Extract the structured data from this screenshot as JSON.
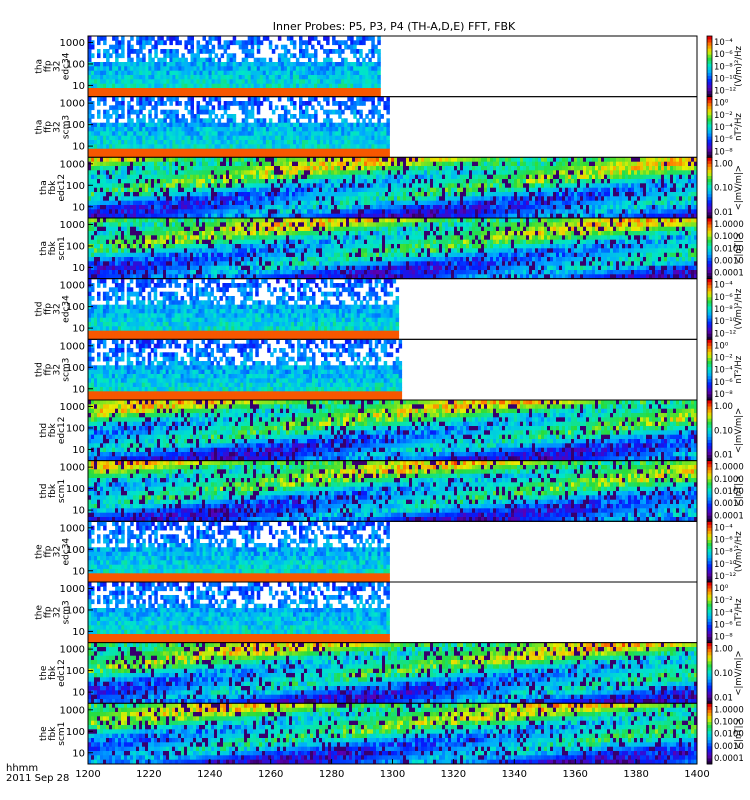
{
  "chart_data": {
    "type": "heatmap",
    "title": "Inner Probes: P5, P3, P4 (TH-A,D,E) FFT, FBK",
    "x": {
      "ticks": [
        1200,
        1220,
        1240,
        1260,
        1280,
        1300,
        1320,
        1340,
        1360,
        1380,
        1400
      ],
      "range": [
        1200,
        1400
      ]
    },
    "footer": {
      "time_label": "hhmm",
      "date_label": "2011 Sep 28"
    },
    "panels": [
      {
        "name": "tha ffp 32 edc34",
        "label_lines": [
          "tha",
          "ffp",
          "32",
          "edc34"
        ],
        "yticks": [
          "10",
          "100",
          "1000"
        ],
        "ylim": [
          3,
          2000
        ],
        "data_end": 1296,
        "colorbar": {
          "ticks": [
            "10⁻⁴",
            "10⁻⁶",
            "10⁻⁸",
            "10⁻¹⁰",
            "10⁻¹²"
          ],
          "unit": "(V/m)²/Hz"
        }
      },
      {
        "name": "tha ffp 32 scm3",
        "label_lines": [
          "tha",
          "ffp",
          "32",
          "scm3"
        ],
        "yticks": [
          "10",
          "100",
          "1000"
        ],
        "ylim": [
          3,
          2000
        ],
        "data_end": 1299,
        "colorbar": {
          "ticks": [
            "10⁰",
            "10⁻²",
            "10⁻⁴",
            "10⁻⁶",
            "10⁻⁸"
          ],
          "unit": "nT²/Hz"
        }
      },
      {
        "name": "tha fbk edc12",
        "label_lines": [
          "tha",
          "fbk",
          "edc12"
        ],
        "yticks": [
          "10",
          "100",
          "1000"
        ],
        "ylim": [
          3,
          2000
        ],
        "data_end": 1400,
        "colorbar": {
          "ticks": [
            "1.00",
            "0.10",
            "0.01"
          ],
          "unit": "<|mV/m|>"
        }
      },
      {
        "name": "tha fbk scm1",
        "label_lines": [
          "tha",
          "fbk",
          "scm1"
        ],
        "yticks": [
          "10",
          "100",
          "1000"
        ],
        "ylim": [
          3,
          2000
        ],
        "data_end": 1400,
        "colorbar": {
          "ticks": [
            "1.0000",
            "0.1000",
            "0.0100",
            "0.0010",
            "0.0001"
          ],
          "unit": "<|nT|>"
        }
      },
      {
        "name": "thd ffp 32 edc34",
        "label_lines": [
          "thd",
          "ffp",
          "32",
          "edc34"
        ],
        "yticks": [
          "10",
          "100",
          "1000"
        ],
        "ylim": [
          3,
          2000
        ],
        "data_end": 1302,
        "colorbar": {
          "ticks": [
            "10⁻⁴",
            "10⁻⁶",
            "10⁻⁸",
            "10⁻¹⁰",
            "10⁻¹²"
          ],
          "unit": "(V/m)²/Hz"
        }
      },
      {
        "name": "thd ffp 32 scm3",
        "label_lines": [
          "thd",
          "ffp",
          "32",
          "scm3"
        ],
        "yticks": [
          "10",
          "100",
          "1000"
        ],
        "ylim": [
          3,
          2000
        ],
        "data_end": 1303,
        "colorbar": {
          "ticks": [
            "10⁰",
            "10⁻²",
            "10⁻⁴",
            "10⁻⁶",
            "10⁻⁸"
          ],
          "unit": "nT²/Hz"
        }
      },
      {
        "name": "thd fbk edc12",
        "label_lines": [
          "thd",
          "fbk",
          "edc12"
        ],
        "yticks": [
          "10",
          "100",
          "1000"
        ],
        "ylim": [
          3,
          2000
        ],
        "data_end": 1400,
        "colorbar": {
          "ticks": [
            "1.00",
            "0.10",
            "0.01"
          ],
          "unit": "<|mV/m|>"
        }
      },
      {
        "name": "thd fbk scm1",
        "label_lines": [
          "thd",
          "fbk",
          "scm1"
        ],
        "yticks": [
          "10",
          "100",
          "1000"
        ],
        "ylim": [
          3,
          2000
        ],
        "data_end": 1400,
        "colorbar": {
          "ticks": [
            "1.0000",
            "0.1000",
            "0.0100",
            "0.0010",
            "0.0001"
          ],
          "unit": "<|nT|>"
        }
      },
      {
        "name": "the ffp 32 edc34",
        "label_lines": [
          "the",
          "ffp",
          "32",
          "edc34"
        ],
        "yticks": [
          "10",
          "100",
          "1000"
        ],
        "ylim": [
          3,
          2000
        ],
        "data_end": 1299,
        "colorbar": {
          "ticks": [
            "10⁻⁴",
            "10⁻⁶",
            "10⁻⁸",
            "10⁻¹⁰",
            "10⁻¹²"
          ],
          "unit": "(V/m)²/Hz"
        }
      },
      {
        "name": "the ffp 32 scm3",
        "label_lines": [
          "the",
          "ffp",
          "32",
          "scm3"
        ],
        "yticks": [
          "10",
          "100",
          "1000"
        ],
        "ylim": [
          3,
          2000
        ],
        "data_end": 1299,
        "colorbar": {
          "ticks": [
            "10⁰",
            "10⁻²",
            "10⁻⁴",
            "10⁻⁶",
            "10⁻⁸"
          ],
          "unit": "nT²/Hz"
        }
      },
      {
        "name": "the fbk edc12",
        "label_lines": [
          "the",
          "fbk",
          "edc12"
        ],
        "yticks": [
          "10",
          "100",
          "1000"
        ],
        "ylim": [
          3,
          2000
        ],
        "data_end": 1400,
        "colorbar": {
          "ticks": [
            "1.00",
            "0.10",
            "0.01"
          ],
          "unit": "<|mV/m|>"
        }
      },
      {
        "name": "the fbk scm1",
        "label_lines": [
          "the",
          "fbk",
          "scm1"
        ],
        "yticks": [
          "10",
          "100",
          "1000"
        ],
        "ylim": [
          3,
          2000
        ],
        "data_end": 1400,
        "colorbar": {
          "ticks": [
            "1.0000",
            "0.1000",
            "0.0100",
            "0.0010",
            "0.0001"
          ],
          "unit": "<|nT|>"
        }
      }
    ]
  }
}
